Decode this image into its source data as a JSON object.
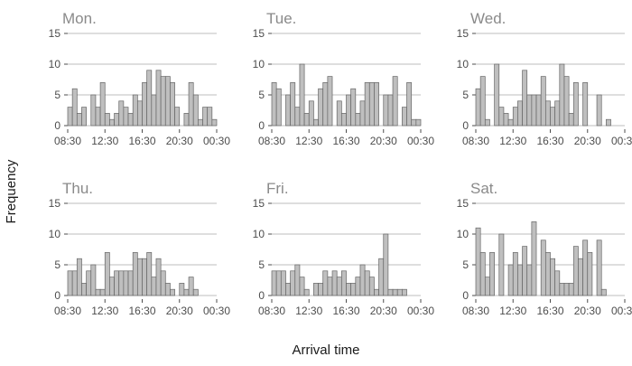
{
  "chart_data": {
    "type": "bar",
    "xlabel": "Arrival time",
    "ylabel": "Frequency",
    "ylim": [
      0,
      15
    ],
    "y_ticks": [
      "0",
      "5",
      "10",
      "15"
    ],
    "x_ticks": [
      "08:30",
      "12:30",
      "16:30",
      "20:30",
      "00:30"
    ],
    "x_range_hours": [
      8.5,
      24.5
    ],
    "bin_width_hours": 0.5,
    "grid": "horizontal",
    "colors": {
      "bar_fill": "#bfbfbf",
      "bar_stroke": "#666666",
      "grid": "#bdbdbd",
      "panel_title": "#8a8a8a"
    },
    "panels": [
      {
        "title": "Mon.",
        "bins_start": "08:30",
        "values": [
          3,
          6,
          2,
          3,
          0,
          5,
          3,
          7,
          2,
          1,
          2,
          4,
          3,
          2,
          5,
          4,
          7,
          9,
          5,
          9,
          8,
          8,
          7,
          3,
          0,
          2,
          7,
          5,
          1,
          3,
          3,
          1
        ]
      },
      {
        "title": "Tue.",
        "bins_start": "08:30",
        "values": [
          7,
          6,
          0,
          5,
          7,
          3,
          10,
          2,
          4,
          1,
          6,
          7,
          8,
          0,
          4,
          2,
          5,
          6,
          2,
          4,
          7,
          7,
          7,
          0,
          5,
          5,
          8,
          0,
          3,
          7,
          1,
          1
        ]
      },
      {
        "title": "Wed.",
        "bins_start": "08:30",
        "values": [
          6,
          8,
          1,
          0,
          10,
          3,
          2,
          1,
          3,
          4,
          9,
          5,
          5,
          5,
          8,
          4,
          3,
          4,
          10,
          8,
          2,
          7,
          0,
          7,
          0,
          0,
          5,
          0,
          1,
          0,
          0,
          0
        ]
      },
      {
        "title": "Thu.",
        "bins_start": "08:30",
        "values": [
          4,
          4,
          6,
          2,
          4,
          5,
          1,
          1,
          7,
          3,
          4,
          4,
          4,
          4,
          7,
          6,
          6,
          7,
          3,
          6,
          4,
          2,
          1,
          0,
          2,
          1,
          3,
          1,
          0,
          0,
          0,
          0
        ]
      },
      {
        "title": "Fri.",
        "bins_start": "08:30",
        "values": [
          4,
          4,
          4,
          2,
          4,
          5,
          3,
          1,
          0,
          2,
          2,
          4,
          3,
          4,
          3,
          4,
          2,
          2,
          3,
          5,
          4,
          3,
          1,
          6,
          10,
          1,
          1,
          1,
          1,
          0,
          0,
          0
        ]
      },
      {
        "title": "Sat.",
        "bins_start": "08:30",
        "values": [
          11,
          7,
          3,
          7,
          0,
          10,
          0,
          5,
          7,
          5,
          8,
          5,
          12,
          0,
          9,
          7,
          6,
          4,
          2,
          2,
          2,
          8,
          6,
          9,
          7,
          0,
          9,
          1,
          0,
          0,
          0,
          0
        ]
      }
    ]
  }
}
